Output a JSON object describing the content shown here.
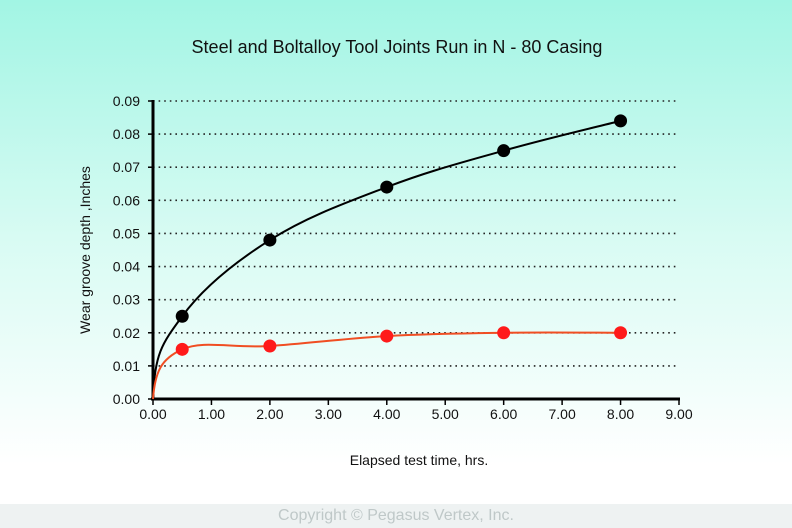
{
  "chart_data": {
    "type": "line",
    "title": "Steel and Boltalloy Tool Joints Run in N - 80 Casing",
    "xlabel": "Elapsed test time, hrs.",
    "ylabel": "Wear groove depth ,Inches",
    "xlim": [
      0,
      9
    ],
    "ylim": [
      0,
      0.09
    ],
    "x_ticks": [
      "0.00",
      "1.00",
      "2.00",
      "3.00",
      "4.00",
      "5.00",
      "6.00",
      "7.00",
      "8.00",
      "9.00"
    ],
    "y_ticks": [
      "0.00",
      "0.01",
      "0.02",
      "0.03",
      "0.04",
      "0.05",
      "0.06",
      "0.07",
      "0.08",
      "0.09"
    ],
    "grid": "horizontal dotted",
    "series": [
      {
        "name": "Steel",
        "color": "#000000",
        "x": [
          0.5,
          2.0,
          4.0,
          6.0,
          8.0
        ],
        "y": [
          0.025,
          0.048,
          0.064,
          0.075,
          0.084
        ]
      },
      {
        "name": "Boltalloy",
        "color": "#ff1a1a",
        "line_color": "#f04e23",
        "x": [
          0.5,
          2.0,
          4.0,
          6.0,
          8.0
        ],
        "y": [
          0.015,
          0.016,
          0.019,
          0.02,
          0.02
        ]
      }
    ]
  },
  "footer": {
    "copyright": "Copyright © Pegasus Vertex, Inc."
  }
}
